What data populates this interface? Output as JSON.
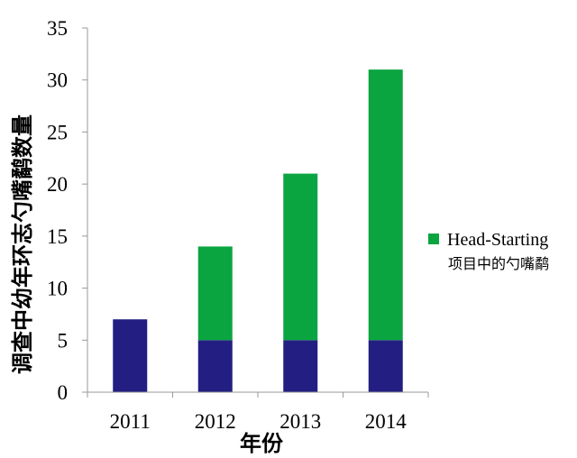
{
  "chart_data": {
    "type": "bar",
    "stacked": true,
    "categories": [
      "2011",
      "2012",
      "2013",
      "2014"
    ],
    "series": [
      {
        "values": [
          7,
          5,
          5,
          5
        ],
        "color": "#221e82"
      },
      {
        "name": "Head-Starting",
        "subname": "项目中的勺嘴鹬",
        "values": [
          0,
          9,
          16,
          26
        ],
        "color": "#0aa541"
      }
    ],
    "xlabel": "年份",
    "ylabel": "调查中幼年环志勺嘴鹬数量",
    "ylim": [
      0,
      35
    ],
    "yticks": [
      0,
      5,
      10,
      15,
      20,
      25,
      30,
      35
    ],
    "grid": false,
    "legend": "right"
  }
}
